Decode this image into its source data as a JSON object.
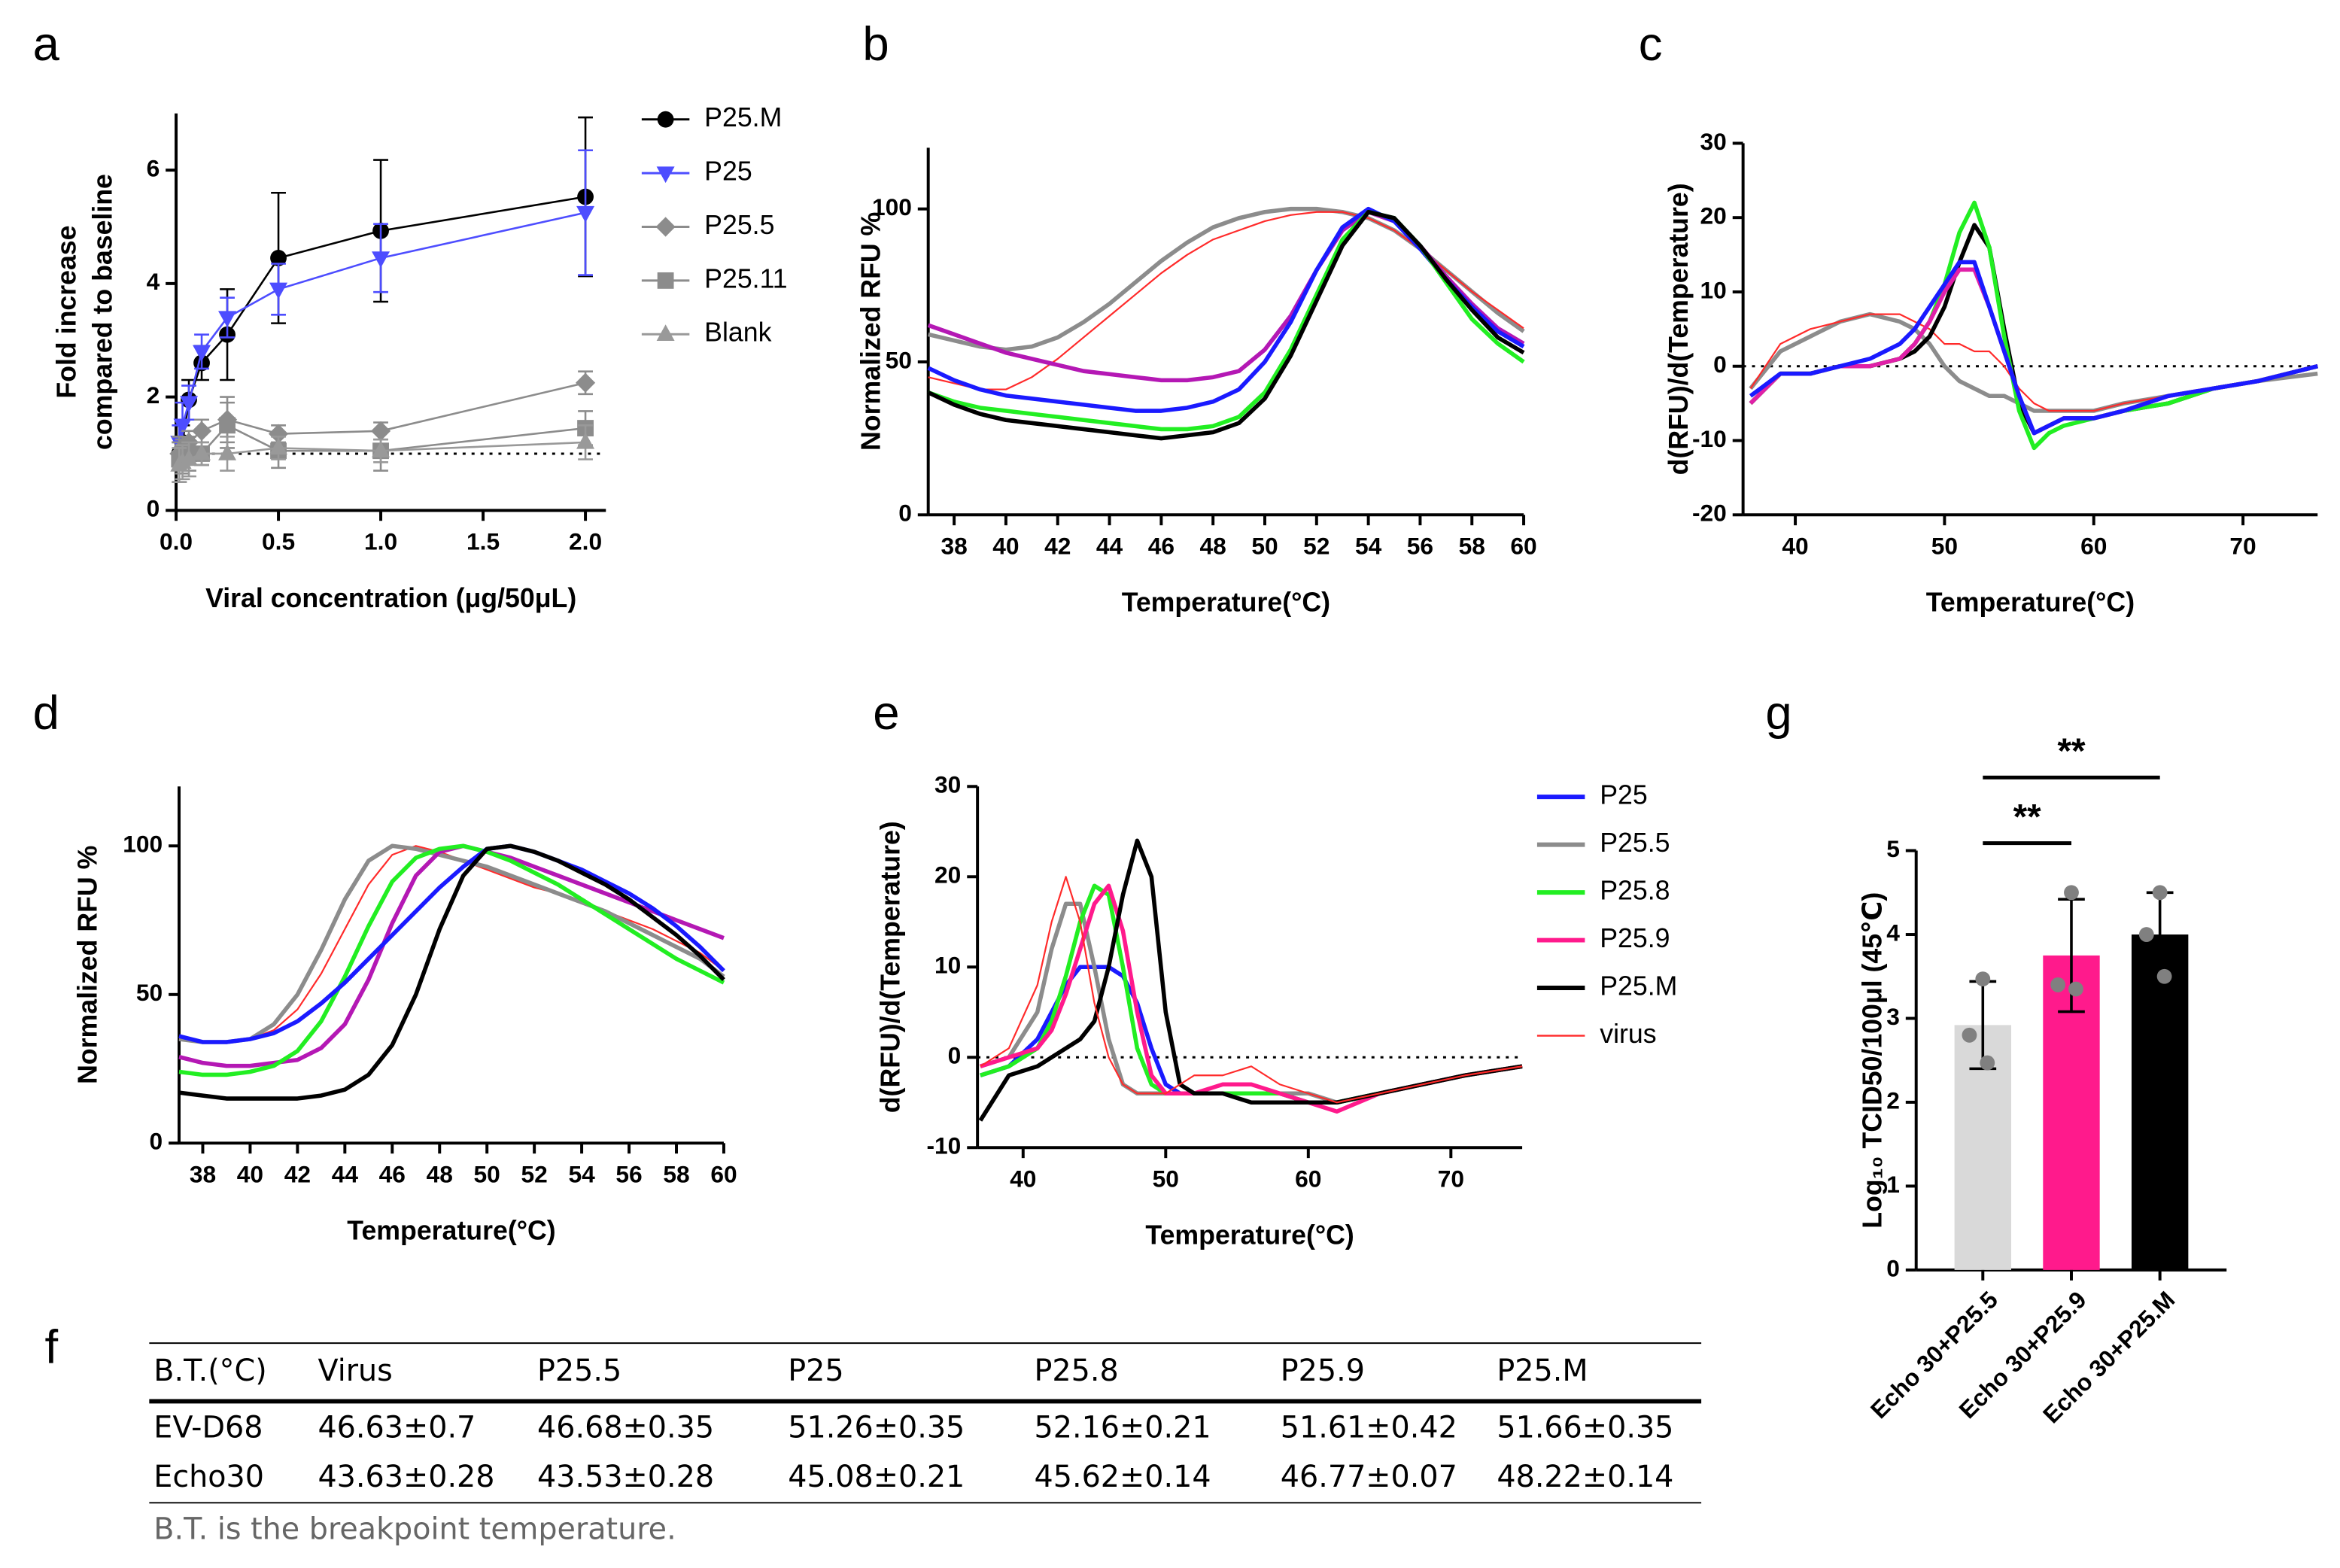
{
  "chart_data": [
    {
      "label": "a",
      "type": "line",
      "ylabel": [
        "Fold increase",
        "compared to baseline"
      ],
      "xlabel": "Viral concentration (μg/50μL)",
      "x": [
        0.015625,
        0.03125,
        0.0625,
        0.125,
        0.25,
        0.5,
        1,
        2
      ],
      "xlim": [
        0,
        2.1
      ],
      "xticks": [
        {
          "value": 0,
          "label": "0.0"
        },
        0.5,
        {
          "value": 1,
          "label": "1.0"
        },
        1.5,
        {
          "value": 2,
          "label": "2.0"
        }
      ],
      "ylim": [
        0,
        7
      ],
      "yticks": [
        0,
        2,
        4,
        6
      ],
      "reference_line": 1,
      "legend": "right",
      "series": [
        {
          "name": "P25.M",
          "color": "#000000",
          "marker": "circle",
          "values": [
            1.0,
            1.2,
            1.95,
            2.6,
            3.1,
            4.45,
            4.93,
            5.53
          ],
          "errors": [
            0.2,
            0.3,
            0.35,
            0.3,
            0.8,
            1.15,
            1.25,
            1.4
          ]
        },
        {
          "name": "P25",
          "color": "#4d4dff",
          "marker": "triangle-down",
          "values": [
            1.2,
            1.5,
            1.9,
            2.8,
            3.4,
            3.9,
            4.45,
            5.25
          ],
          "errors": [
            0.3,
            0.4,
            0.3,
            0.3,
            0.35,
            0.45,
            0.6,
            1.1
          ]
        },
        {
          "name": "P25.5",
          "color": "#8c8c8c",
          "marker": "diamond",
          "values": [
            1.0,
            1.1,
            1.2,
            1.4,
            1.6,
            1.35,
            1.4,
            2.25
          ],
          "errors": [
            0.2,
            0.2,
            0.2,
            0.2,
            0.4,
            0.15,
            0.15,
            0.2
          ]
        },
        {
          "name": "P25.11",
          "color": "#8c8c8c",
          "marker": "square",
          "values": [
            0.9,
            0.95,
            1.0,
            1.0,
            1.5,
            1.05,
            1.05,
            1.45
          ],
          "errors": [
            0.4,
            0.3,
            0.3,
            0.2,
            0.4,
            0.3,
            0.35,
            0.3
          ]
        },
        {
          "name": "Blank",
          "color": "#999999",
          "marker": "triangle",
          "values": [
            0.8,
            0.85,
            0.9,
            1.0,
            1.0,
            1.1,
            1.05,
            1.2
          ],
          "errors": [
            0.3,
            0.3,
            0.3,
            0.2,
            0.3,
            0.2,
            0.2,
            0.3
          ]
        }
      ]
    },
    {
      "label": "b",
      "type": "line",
      "ylabel": "Normalized RFU %",
      "xlabel": "Temperature(°C)",
      "x": [
        37,
        38,
        39,
        40,
        41,
        42,
        43,
        44,
        45,
        46,
        47,
        48,
        49,
        50,
        51,
        52,
        53,
        54,
        55,
        56,
        57,
        58,
        59,
        60
      ],
      "xlim": [
        37,
        60
      ],
      "xticks": [
        38,
        40,
        42,
        44,
        46,
        48,
        50,
        52,
        54,
        56,
        58,
        60
      ],
      "ylim": [
        0,
        120
      ],
      "yticks": [
        0,
        50,
        100
      ],
      "series": [
        {
          "color": "#8c8c8c",
          "values": [
            59,
            57,
            55,
            54,
            55,
            58,
            63,
            69,
            76,
            83,
            89,
            94,
            97,
            99,
            100,
            100,
            99,
            97,
            93,
            87,
            80,
            73,
            66,
            60
          ]
        },
        {
          "color": "#ff2a2a",
          "style": "thin",
          "values": [
            45,
            43,
            41,
            41,
            45,
            51,
            58,
            65,
            72,
            79,
            85,
            90,
            93,
            96,
            98,
            99,
            99,
            97,
            93,
            87,
            80,
            73,
            67,
            61
          ]
        },
        {
          "color": "#b418b4",
          "values": [
            62,
            59,
            56,
            53,
            51,
            49,
            47,
            46,
            45,
            44,
            44,
            45,
            47,
            54,
            65,
            80,
            93,
            99,
            96,
            88,
            78,
            69,
            61,
            56
          ]
        },
        {
          "color": "#1a1aff",
          "values": [
            48,
            44,
            41,
            39,
            38,
            37,
            36,
            35,
            34,
            34,
            35,
            37,
            41,
            50,
            63,
            80,
            94,
            100,
            96,
            87,
            77,
            68,
            60,
            55
          ]
        },
        {
          "color": "#22ee22",
          "values": [
            40,
            37,
            35,
            34,
            33,
            32,
            31,
            30,
            29,
            28,
            28,
            29,
            32,
            40,
            54,
            72,
            90,
            99,
            97,
            88,
            76,
            64,
            56,
            50
          ]
        },
        {
          "color": "#000000",
          "values": [
            40,
            36,
            33,
            31,
            30,
            29,
            28,
            27,
            26,
            25,
            26,
            27,
            30,
            38,
            52,
            70,
            88,
            99,
            97,
            88,
            77,
            67,
            58,
            53
          ]
        }
      ]
    },
    {
      "label": "c",
      "type": "line",
      "ylabel": "d(RFU)/d(Temperature)",
      "xlabel": "Temperature(°C)",
      "x": [
        37,
        39,
        41,
        43,
        45,
        47,
        48,
        49,
        50,
        51,
        52,
        53,
        54,
        55,
        56,
        57,
        58,
        60,
        62,
        65,
        68,
        71,
        75
      ],
      "xlim": [
        36.5,
        75
      ],
      "xticks": [
        40,
        50,
        60,
        70
      ],
      "ylim": [
        -20,
        30
      ],
      "yticks": [
        -20,
        -10,
        0,
        10,
        20,
        30
      ],
      "reference_line": 0,
      "series": [
        {
          "color": "#8c8c8c",
          "values": [
            -3,
            2,
            4,
            6,
            7,
            6,
            5,
            3,
            0,
            -2,
            -3,
            -4,
            -4,
            -5,
            -6,
            -6,
            -6,
            -6,
            -5,
            -4,
            -3,
            -2,
            -1
          ]
        },
        {
          "color": "#ff2a2a",
          "style": "thin",
          "values": [
            -3,
            3,
            5,
            6,
            7,
            7,
            6,
            5,
            3,
            3,
            2,
            2,
            0,
            -3,
            -5,
            -6,
            -6,
            -6,
            -5,
            -4,
            -3,
            -2,
            0
          ]
        },
        {
          "color": "#000000",
          "values": [
            -5,
            -1,
            -1,
            0,
            0,
            1,
            2,
            4,
            8,
            14,
            19,
            16,
            5,
            -5,
            -9,
            -8,
            -7,
            -7,
            -6,
            -5,
            -3,
            -2,
            0
          ]
        },
        {
          "color": "#22ee22",
          "values": [
            -5,
            -1,
            -1,
            0,
            0,
            1,
            3,
            6,
            11,
            18,
            22,
            16,
            4,
            -6,
            -11,
            -9,
            -8,
            -7,
            -6,
            -5,
            -3,
            -2,
            0
          ]
        },
        {
          "color": "#e020a8",
          "values": [
            -5,
            -1,
            -1,
            0,
            0,
            1,
            3,
            6,
            10,
            13,
            13,
            8,
            2,
            -4,
            -9,
            -8,
            -7,
            -7,
            -6,
            -4,
            -3,
            -2,
            0
          ]
        },
        {
          "color": "#1a1aff",
          "values": [
            -4,
            -1,
            -1,
            0,
            1,
            3,
            5,
            8,
            11,
            14,
            14,
            8,
            2,
            -4,
            -9,
            -8,
            -7,
            -7,
            -6,
            -4,
            -3,
            -2,
            0
          ]
        }
      ]
    },
    {
      "label": "d",
      "type": "line",
      "ylabel": "Normalized RFU %",
      "xlabel": "Temperature(°C)",
      "x": [
        37,
        38,
        39,
        40,
        41,
        42,
        43,
        44,
        45,
        46,
        47,
        48,
        49,
        50,
        51,
        52,
        53,
        54,
        55,
        56,
        57,
        58,
        59,
        60
      ],
      "xlim": [
        37,
        60
      ],
      "xticks": [
        38,
        40,
        42,
        44,
        46,
        48,
        50,
        52,
        54,
        56,
        58,
        60
      ],
      "ylim": [
        0,
        120
      ],
      "yticks": [
        0,
        50,
        100
      ],
      "series": [
        {
          "color": "#ff2a2a",
          "style": "thin",
          "values": [
            35,
            34,
            34,
            35,
            38,
            45,
            57,
            72,
            87,
            97,
            100,
            98,
            95,
            92,
            89,
            86,
            84,
            81,
            78,
            75,
            72,
            68,
            64,
            58
          ]
        },
        {
          "color": "#8c8c8c",
          "values": [
            35,
            34,
            34,
            35,
            40,
            50,
            65,
            82,
            95,
            100,
            99,
            97,
            95,
            93,
            90,
            87,
            84,
            81,
            78,
            74,
            70,
            66,
            62,
            56
          ]
        },
        {
          "color": "#b418b4",
          "values": [
            29,
            27,
            26,
            26,
            27,
            28,
            32,
            40,
            55,
            74,
            90,
            98,
            100,
            98,
            96,
            93,
            90,
            87,
            84,
            81,
            78,
            75,
            72,
            69
          ]
        },
        {
          "color": "#22ee22",
          "values": [
            24,
            23,
            23,
            24,
            26,
            31,
            41,
            56,
            73,
            88,
            96,
            99,
            100,
            98,
            95,
            91,
            87,
            82,
            77,
            72,
            67,
            62,
            58,
            54
          ]
        },
        {
          "color": "#1a1aff",
          "values": [
            36,
            34,
            34,
            35,
            37,
            41,
            47,
            54,
            62,
            70,
            78,
            86,
            93,
            99,
            100,
            98,
            95,
            92,
            88,
            84,
            79,
            73,
            66,
            58
          ]
        },
        {
          "color": "#000000",
          "values": [
            17,
            16,
            15,
            15,
            15,
            15,
            16,
            18,
            23,
            33,
            50,
            72,
            90,
            99,
            100,
            98,
            95,
            91,
            87,
            82,
            76,
            70,
            63,
            55
          ]
        }
      ]
    },
    {
      "label": "e",
      "type": "line",
      "ylabel": "d(RFU)/d(Temperature)",
      "xlabel": "Temperature(°C)",
      "x": [
        37,
        39,
        41,
        42,
        43,
        44,
        45,
        46,
        47,
        48,
        49,
        50,
        51,
        52,
        54,
        56,
        58,
        60,
        62,
        65,
        68,
        71,
        75
      ],
      "xlim": [
        36.8,
        75
      ],
      "xticks": [
        40,
        50,
        60,
        70
      ],
      "ylim": [
        -10,
        30
      ],
      "yticks": [
        -10,
        0,
        10,
        20,
        30
      ],
      "reference_line": 0,
      "legend": "right",
      "series": [
        {
          "name": "P25",
          "color": "#1a1aff",
          "values": [
            -2,
            -1,
            2,
            5,
            8,
            10,
            10,
            10,
            9,
            6,
            1,
            -3,
            -4,
            -4,
            -4,
            -4,
            -4,
            -5,
            -5,
            -4,
            -3,
            -2,
            -1
          ]
        },
        {
          "name": "P25.5",
          "color": "#8c8c8c",
          "values": [
            -1,
            0,
            5,
            12,
            17,
            17,
            10,
            2,
            -3,
            -4,
            -4,
            -4,
            -4,
            -4,
            -4,
            -4,
            -4,
            -4,
            -5,
            -4,
            -3,
            -2,
            -1
          ]
        },
        {
          "name": "P25.8",
          "color": "#22ee22",
          "values": [
            -2,
            -1,
            1,
            4,
            9,
            15,
            19,
            18,
            10,
            1,
            -3,
            -4,
            -4,
            -4,
            -4,
            -4,
            -4,
            -5,
            -5,
            -4,
            -3,
            -2,
            -1
          ]
        },
        {
          "name": "P25.9",
          "color": "#ff1a8c",
          "values": [
            -1,
            0,
            1,
            3,
            7,
            12,
            17,
            19,
            14,
            5,
            -2,
            -4,
            -4,
            -4,
            -3,
            -3,
            -4,
            -5,
            -6,
            -4,
            -3,
            -2,
            -1
          ]
        },
        {
          "name": "P25.M",
          "color": "#000000",
          "values": [
            -7,
            -2,
            -1,
            0,
            1,
            2,
            4,
            10,
            18,
            24,
            20,
            5,
            -3,
            -4,
            -4,
            -5,
            -5,
            -5,
            -5,
            -4,
            -3,
            -2,
            -1
          ]
        },
        {
          "name": "virus",
          "color": "#ff2a2a",
          "style": "thin",
          "values": [
            -1,
            1,
            8,
            15,
            20,
            15,
            6,
            0,
            -3,
            -4,
            -4,
            -4,
            -3,
            -2,
            -2,
            -1,
            -3,
            -4,
            -5,
            -4,
            -3,
            -2,
            -1
          ]
        }
      ]
    },
    {
      "label": "g",
      "type": "bar",
      "ylabel": "Log₁₀ TCID50/100μl (45℃)",
      "categories": [
        "Echo 30+P25.5",
        "Echo 30+P25.9",
        "Echo 30+P25.M"
      ],
      "values": [
        2.92,
        3.75,
        4.0
      ],
      "errors": [
        0.52,
        0.67,
        0.5
      ],
      "colors": [
        "#d9d9d9",
        "#ff1a8c",
        "#000000"
      ],
      "points": [
        [
          3.47,
          2.8,
          2.47
        ],
        [
          4.5,
          3.4,
          3.35
        ],
        [
          4.5,
          4.0,
          3.5
        ]
      ],
      "point_color": "#808080",
      "ylim": [
        0,
        5
      ],
      "yticks": [
        0,
        1,
        2,
        3,
        4,
        5
      ],
      "comparisons": [
        {
          "label": "**",
          "between": [
            0,
            1
          ]
        },
        {
          "label": "**",
          "between": [
            0,
            2
          ]
        }
      ]
    }
  ],
  "table": {
    "label": "f",
    "header": [
      "B.T.(°C)",
      "Virus",
      "P25.5",
      "P25",
      "P25.8",
      "P25.9",
      "P25.M"
    ],
    "rows": [
      [
        "EV-D68",
        "46.63±0.7",
        "46.68±0.35",
        "51.26±0.35",
        "52.16±0.21",
        "51.61±0.42",
        "51.66±0.35"
      ],
      [
        "Echo30",
        "43.63±0.28",
        "43.53±0.28",
        "45.08±0.21",
        "45.62±0.14",
        "46.77±0.07",
        "48.22±0.14"
      ]
    ],
    "note": "B.T. is the breakpoint temperature."
  }
}
